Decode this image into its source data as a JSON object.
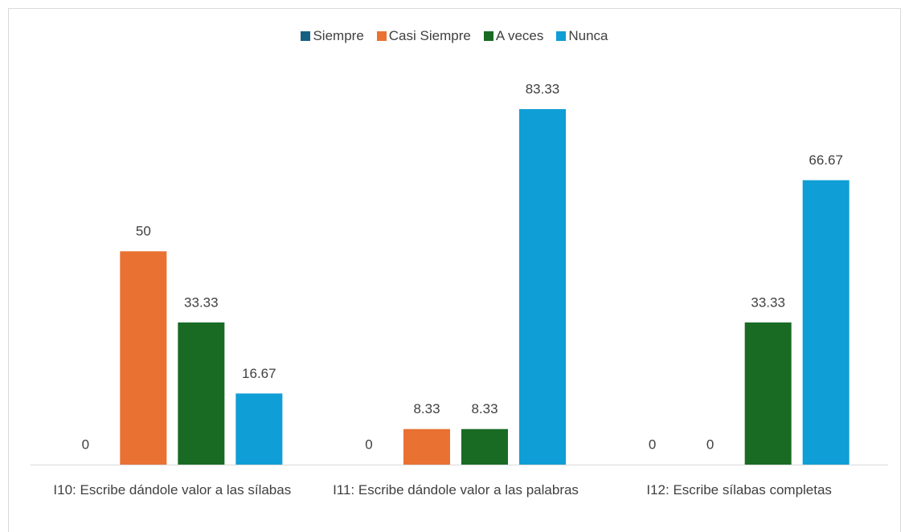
{
  "chart_data": {
    "type": "bar",
    "categories": [
      "I10: Escribe dándole valor a las sílabas",
      "I11: Escribe dándole valor a las palabras",
      "I12: Escribe sílabas completas"
    ],
    "series": [
      {
        "name": "Siempre",
        "color": "#156082",
        "values": [
          0,
          0,
          0
        ]
      },
      {
        "name": "Casi Siempre",
        "color": "#e97132",
        "values": [
          50,
          8.33,
          0
        ]
      },
      {
        "name": "A veces",
        "color": "#196b24",
        "values": [
          33.33,
          8.33,
          33.33
        ]
      },
      {
        "name": "Nunca",
        "color": "#0f9ed5",
        "values": [
          16.67,
          83.33,
          66.67
        ]
      }
    ]
  }
}
